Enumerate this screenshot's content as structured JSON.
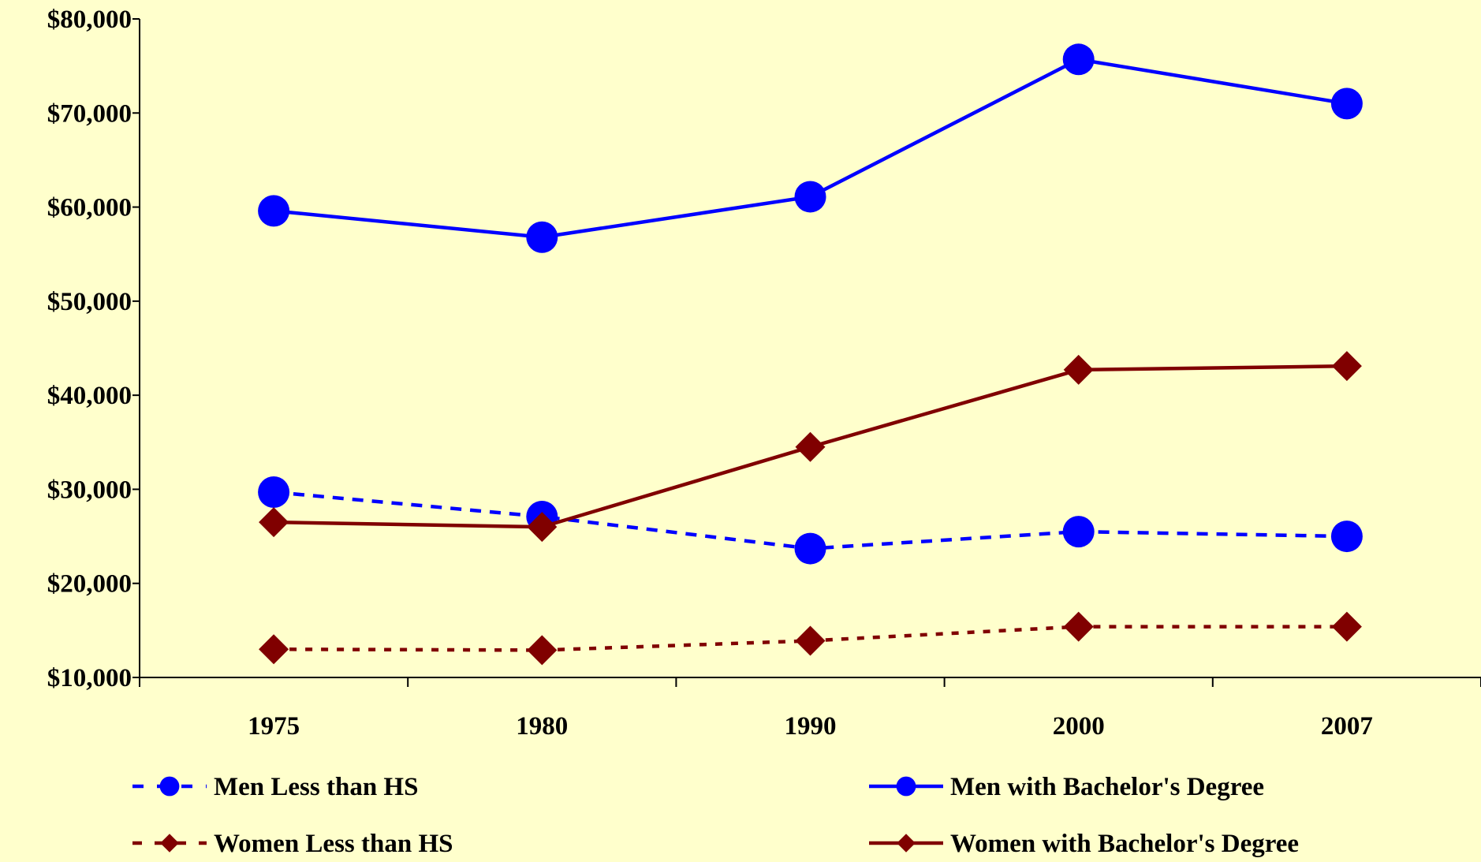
{
  "chart_data": {
    "type": "line",
    "title": "",
    "xlabel": "",
    "ylabel": "",
    "categories": [
      "1975",
      "1980",
      "1990",
      "2000",
      "2007"
    ],
    "ylim": [
      10000,
      80000
    ],
    "y_ticks": [
      10000,
      20000,
      30000,
      40000,
      50000,
      60000,
      70000,
      80000
    ],
    "y_tick_labels": [
      "$10,000",
      "$20,000",
      "$30,000",
      "$40,000",
      "$50,000",
      "$60,000",
      "$70,000",
      "$80,000"
    ],
    "grid": false,
    "legend_position": "bottom",
    "series": [
      {
        "name": "Men Less than HS",
        "values": [
          29700,
          27100,
          23700,
          25500,
          25000
        ],
        "color": "#0000FF",
        "line_style": "dashed",
        "marker": "circle"
      },
      {
        "name": "Men with Bachelor's Degree",
        "values": [
          59600,
          56800,
          61100,
          75700,
          71000
        ],
        "color": "#0000FF",
        "line_style": "solid",
        "marker": "circle"
      },
      {
        "name": "Women Less than HS",
        "values": [
          13000,
          12900,
          13900,
          15400,
          15400
        ],
        "color": "#800000",
        "line_style": "dotted",
        "marker": "diamond"
      },
      {
        "name": "Women with Bachelor's Degree",
        "values": [
          26500,
          26000,
          34500,
          42700,
          43100
        ],
        "color": "#800000",
        "line_style": "solid",
        "marker": "diamond"
      }
    ]
  },
  "colors": {
    "background": "#FFFFCC",
    "axis": "#000000"
  }
}
